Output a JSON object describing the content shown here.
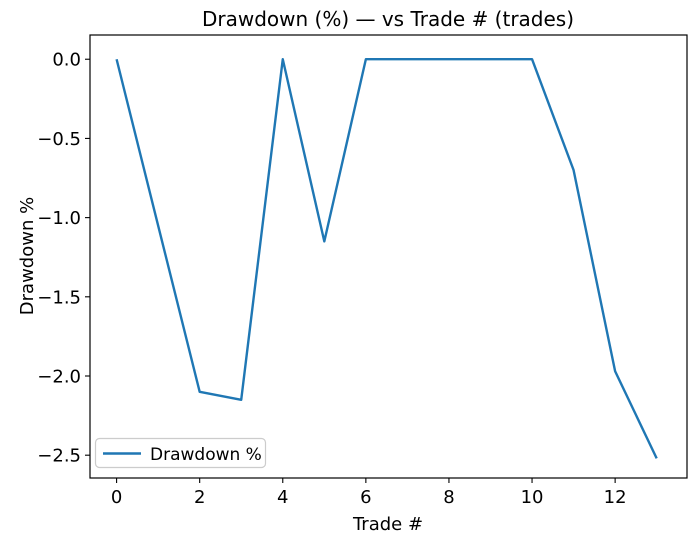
{
  "chart_data": {
    "type": "line",
    "title": "Drawdown (%) — vs Trade # (trades)",
    "xlabel": "Trade #",
    "ylabel": "Drawdown %",
    "x": [
      0,
      1,
      2,
      3,
      4,
      5,
      6,
      7,
      8,
      9,
      10,
      11,
      12,
      13
    ],
    "series": [
      {
        "name": "Drawdown %",
        "color": "#1f77b4",
        "values": [
          0.0,
          -1.05,
          -2.1,
          -2.15,
          0.0,
          -1.15,
          0.0,
          0.0,
          0.0,
          0.0,
          0.0,
          -0.7,
          -1.97,
          -2.52
        ]
      }
    ],
    "xlim": [
      -0.64,
      13.73
    ],
    "ylim": [
      -2.644,
      0.153
    ],
    "xticks": {
      "values": [
        0,
        2,
        4,
        6,
        8,
        10,
        12
      ],
      "labels": [
        "0",
        "2",
        "4",
        "6",
        "8",
        "10",
        "12"
      ]
    },
    "yticks": {
      "values": [
        0.0,
        -0.5,
        -1.0,
        -1.5,
        -2.0,
        -2.5
      ],
      "labels": [
        "0.0",
        "−0.5",
        "−1.0",
        "−1.5",
        "−2.0",
        "−2.5"
      ]
    },
    "grid": false,
    "frame_color": "#000000",
    "legend": {
      "label": "Drawdown %",
      "position": "lower left",
      "border_color": "#cccccc",
      "background": "#ffffff"
    }
  }
}
